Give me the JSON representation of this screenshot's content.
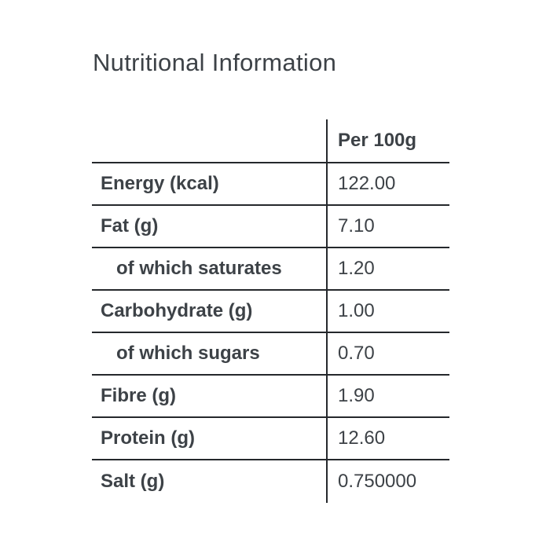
{
  "title": "Nutritional Information",
  "table": {
    "column_header": "Per 100g",
    "rows": [
      {
        "label": "Energy (kcal)",
        "value": "122.00",
        "indent": false
      },
      {
        "label": "Fat (g)",
        "value": "7.10",
        "indent": false
      },
      {
        "label": "of which saturates",
        "value": "1.20",
        "indent": true
      },
      {
        "label": "Carbohydrate (g)",
        "value": "1.00",
        "indent": false
      },
      {
        "label": "of which sugars",
        "value": "0.70",
        "indent": true
      },
      {
        "label": "Fibre (g)",
        "value": "1.90",
        "indent": false
      },
      {
        "label": "Protein (g)",
        "value": "12.60",
        "indent": false
      },
      {
        "label": "Salt (g)",
        "value": "0.750000",
        "indent": false
      }
    ]
  },
  "colors": {
    "background": "#ffffff",
    "text": "#3d4247",
    "rule": "#25282c"
  }
}
